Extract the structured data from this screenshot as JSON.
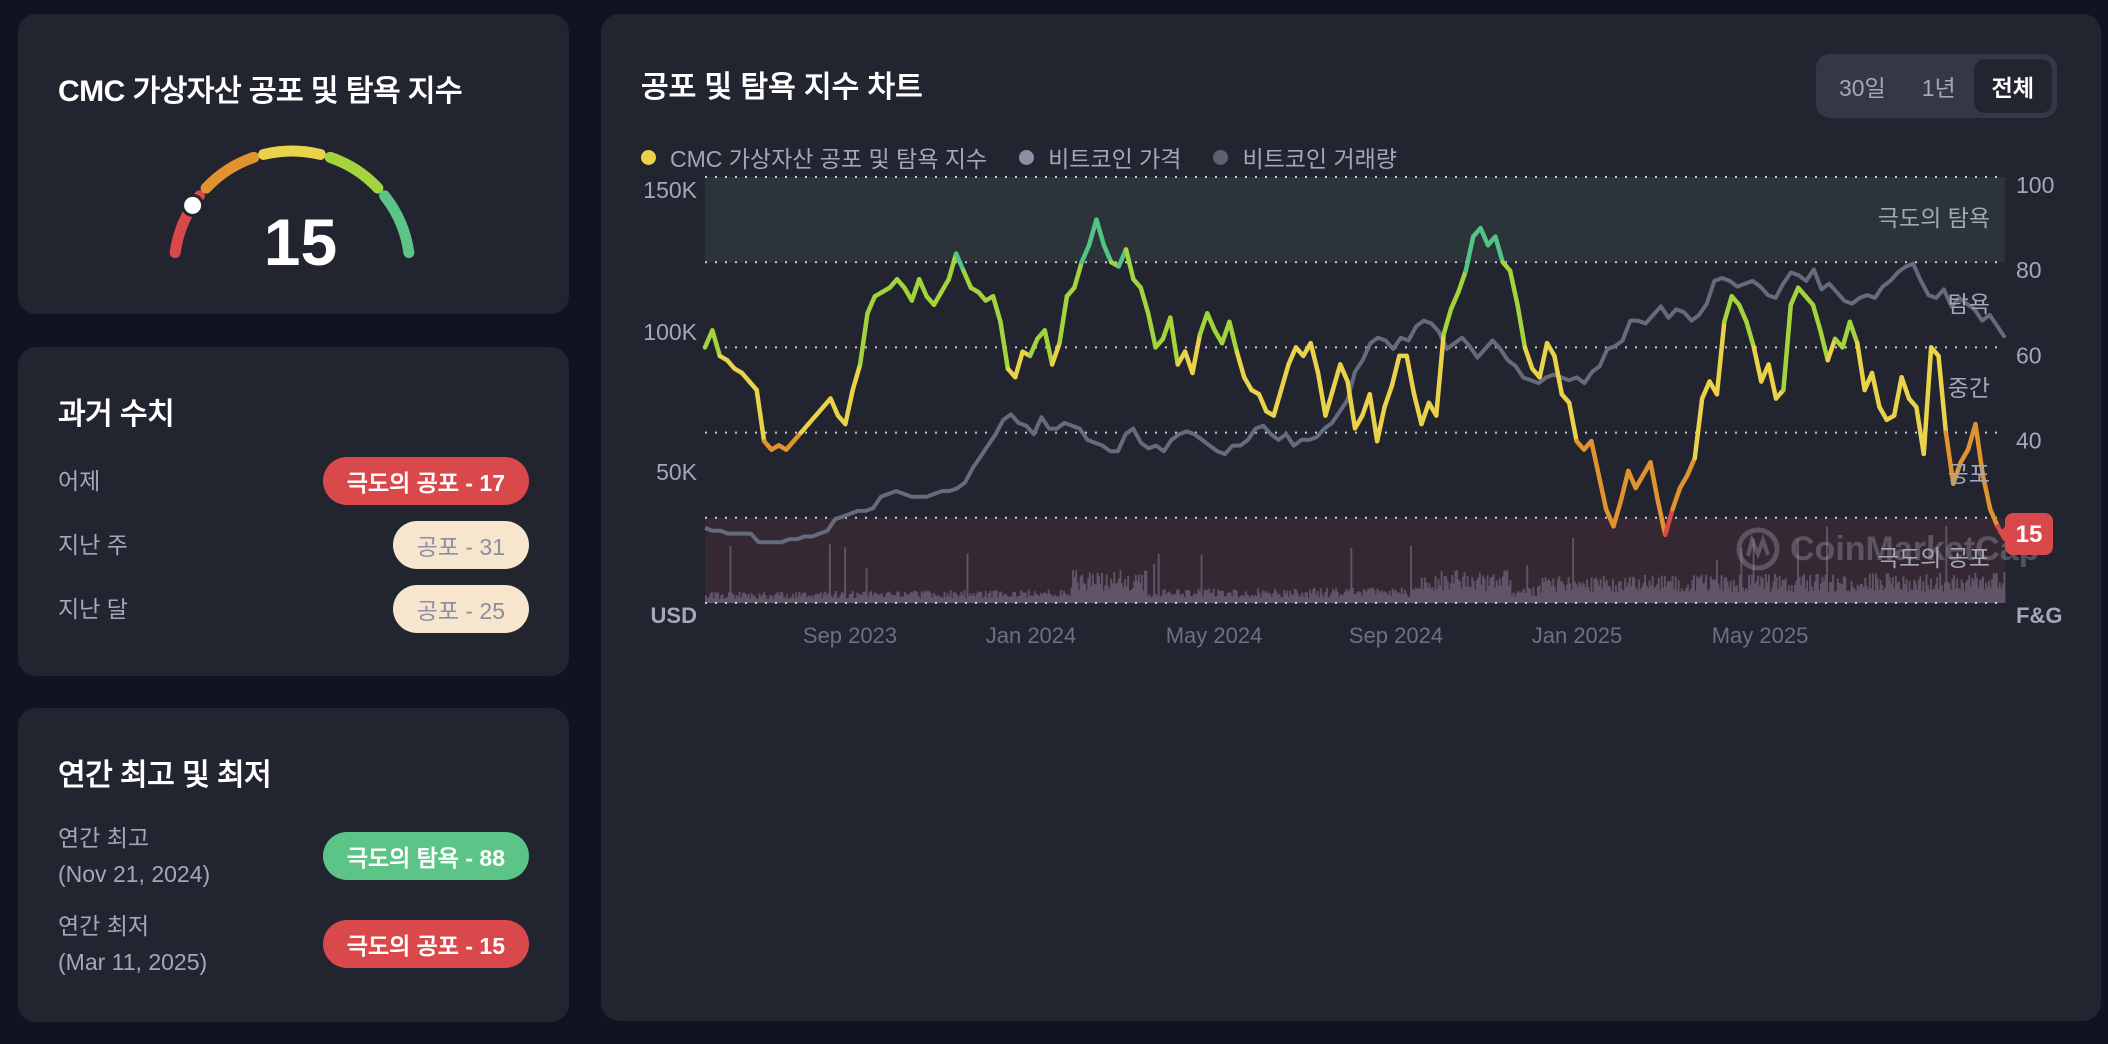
{
  "gauge_card": {
    "title": "CMC 가상자산 공포 및 탐욕 지수",
    "value": "15",
    "segments": [
      {
        "color": "#d9484b"
      },
      {
        "color": "#e0932f"
      },
      {
        "color": "#ead24a"
      },
      {
        "color": "#a3d43c"
      },
      {
        "color": "#5cc487"
      }
    ],
    "indicator_color": "#ffffff"
  },
  "history_card": {
    "title": "과거 수치",
    "rows": [
      {
        "label": "어제",
        "badge": "극도의 공포 - 17",
        "style": "red"
      },
      {
        "label": "지난 주",
        "badge": "공포 - 31",
        "style": "cream"
      },
      {
        "label": "지난 달",
        "badge": "공포 - 25",
        "style": "cream"
      }
    ]
  },
  "yearly_card": {
    "title": "연간 최고 및 최저",
    "rows": [
      {
        "label": "연간 최고",
        "date": "(Nov 21, 2024)",
        "badge": "극도의 탐욕 - 88",
        "style": "green"
      },
      {
        "label": "연간 최저",
        "date": "(Mar 11, 2025)",
        "badge": "극도의 공포 - 15",
        "style": "red"
      }
    ]
  },
  "chart_card": {
    "title": "공포 및 탐욕 지수 차트",
    "range_buttons": [
      {
        "label": "30일",
        "active": false
      },
      {
        "label": "1년",
        "active": false
      },
      {
        "label": "전체",
        "active": true
      }
    ],
    "legend": [
      {
        "label": "CMC 가상자산 공포 및 탐욕 지수",
        "color": "#ead24a"
      },
      {
        "label": "비트코인 가격",
        "color": "#8a8fa3"
      },
      {
        "label": "비트코인 거래량",
        "color": "#5d6170"
      }
    ],
    "left_axis_unit": "USD",
    "right_axis_unit": "F&G",
    "current_value_badge": "15",
    "current_badge_color": "#d9484b",
    "watermark": "CoinMarketCap",
    "zone_labels": [
      "극도의 탐욕",
      "탐욕",
      "중간",
      "공포",
      "극도의 공포"
    ]
  },
  "chart_data": {
    "type": "line",
    "title": "공포 및 탐욕 지수 차트",
    "xlabel": "",
    "ylabel_left": "USD",
    "ylabel_right": "F&G",
    "x_tick_labels": [
      "Sep 2023",
      "Jan 2024",
      "May 2024",
      "Sep 2024",
      "Jan 2025",
      "May 2025"
    ],
    "y_left_ticks": [
      "50K",
      "100K",
      "150K"
    ],
    "y_right_ticks": [
      20,
      40,
      60,
      80,
      100
    ],
    "y_right_range": [
      0,
      100
    ],
    "grid": true,
    "legend_position": "top-left",
    "zones": [
      {
        "label": "극도의 탐욕",
        "from": 80,
        "to": 100,
        "color": "#2b3539"
      },
      {
        "label": "탐욕",
        "from": 60,
        "to": 80
      },
      {
        "label": "중간",
        "from": 40,
        "to": 60
      },
      {
        "label": "공포",
        "from": 20,
        "to": 40
      },
      {
        "label": "극도의 공포",
        "from": 0,
        "to": 20,
        "color": "#352832"
      }
    ],
    "x_start": "Jun 2023",
    "x_end": "Nov 2025",
    "series": [
      {
        "name": "CMC 가상자산 공포 및 탐욕 지수",
        "axis": "right",
        "values": [
          60,
          64,
          58,
          57,
          55,
          54,
          52,
          50,
          38,
          36,
          37,
          36,
          38,
          40,
          42,
          44,
          46,
          48,
          44,
          42,
          50,
          56,
          68,
          72,
          73,
          74,
          76,
          74,
          71,
          76,
          72,
          70,
          73,
          76,
          82,
          78,
          74,
          73,
          71,
          72,
          66,
          55,
          53,
          59,
          58,
          62,
          64,
          56,
          61,
          72,
          74,
          80,
          84,
          90,
          84,
          80,
          79,
          83,
          76,
          74,
          68,
          60,
          62,
          67,
          56,
          59,
          54,
          63,
          68,
          64,
          61,
          66,
          59,
          53,
          50,
          49,
          45,
          44,
          50,
          56,
          60,
          58,
          61,
          54,
          44,
          50,
          56,
          52,
          41,
          44,
          49,
          38,
          46,
          51,
          58,
          58,
          49,
          42,
          47,
          44,
          63,
          69,
          73,
          78,
          86,
          88,
          84,
          86,
          80,
          78,
          70,
          60,
          55,
          53,
          61,
          58,
          49,
          47,
          38,
          36,
          38,
          30,
          22,
          18,
          24,
          31,
          27,
          30,
          33,
          24,
          16,
          22,
          27,
          30,
          34,
          48,
          52,
          49,
          66,
          72,
          70,
          66,
          60,
          52,
          56,
          48,
          50,
          70,
          74,
          72,
          70,
          64,
          57,
          62,
          60,
          66,
          61,
          50,
          54,
          46,
          43,
          44,
          53,
          48,
          46,
          35,
          60,
          58,
          40,
          28,
          33,
          36,
          42,
          30,
          22,
          18,
          15
        ]
      },
      {
        "name": "비트코인 가격",
        "axis": "left",
        "unit": "K USD",
        "values": [
          31,
          30,
          30,
          29,
          29,
          29,
          29,
          26,
          26,
          26,
          26,
          27,
          27,
          28,
          28,
          29,
          30,
          34,
          35,
          36,
          37,
          37,
          38,
          42,
          43,
          44,
          43,
          42,
          42,
          42,
          43,
          44,
          44,
          45,
          47,
          52,
          56,
          60,
          64,
          69,
          71,
          68,
          67,
          64,
          70,
          66,
          66,
          68,
          67,
          66,
          62,
          61,
          60,
          58,
          58,
          64,
          66,
          61,
          59,
          60,
          58,
          62,
          64,
          65,
          64,
          62,
          60,
          58,
          57,
          60,
          60,
          62,
          66,
          67,
          64,
          62,
          64,
          60,
          62,
          62,
          63,
          66,
          68,
          72,
          76,
          86,
          90,
          96,
          98,
          97,
          94,
          98,
          97,
          102,
          104,
          103,
          100,
          94,
          96,
          98,
          95,
          91,
          94,
          97,
          94,
          90,
          88,
          84,
          83,
          82,
          84,
          85,
          84,
          83,
          84,
          82,
          86,
          88,
          94,
          95,
          97,
          104,
          104,
          103,
          106,
          109,
          105,
          108,
          107,
          104,
          106,
          110,
          118,
          119,
          118,
          116,
          117,
          118,
          116,
          113,
          112,
          117,
          121,
          120,
          118,
          122,
          115,
          117,
          114,
          111,
          110,
          112,
          113,
          112,
          116,
          118,
          121,
          123,
          124,
          118,
          113,
          112,
          115,
          109,
          112,
          110,
          108,
          104,
          106,
          102,
          98
        ]
      },
      {
        "name": "비트코인 거래량",
        "axis": "left",
        "type": "bar",
        "note": "relative daily volume bars along bottom of chart"
      }
    ]
  }
}
